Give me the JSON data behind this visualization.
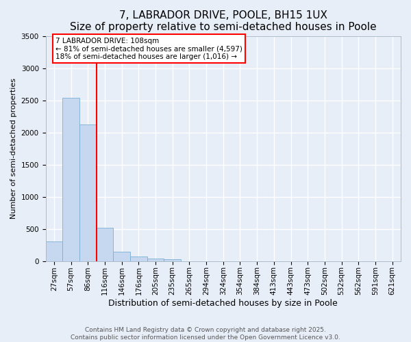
{
  "title": "7, LABRADOR DRIVE, POOLE, BH15 1UX",
  "subtitle": "Size of property relative to semi-detached houses in Poole",
  "xlabel": "Distribution of semi-detached houses by size in Poole",
  "ylabel": "Number of semi-detached properties",
  "bins": [
    "27sqm",
    "57sqm",
    "86sqm",
    "116sqm",
    "146sqm",
    "176sqm",
    "205sqm",
    "235sqm",
    "265sqm",
    "294sqm",
    "324sqm",
    "354sqm",
    "384sqm",
    "413sqm",
    "443sqm",
    "473sqm",
    "502sqm",
    "532sqm",
    "562sqm",
    "591sqm",
    "621sqm"
  ],
  "values": [
    310,
    2540,
    2120,
    520,
    150,
    70,
    40,
    30,
    0,
    0,
    0,
    0,
    0,
    0,
    0,
    0,
    0,
    0,
    0,
    0,
    0
  ],
  "bar_color": "#c5d8f0",
  "bar_edge_color": "#7aafd4",
  "vline_color": "red",
  "vline_x_index": 2.5,
  "annotation_text": "7 LABRADOR DRIVE: 108sqm\n← 81% of semi-detached houses are smaller (4,597)\n18% of semi-detached houses are larger (1,016) →",
  "annotation_box_color": "white",
  "annotation_box_edge_color": "red",
  "ylim": [
    0,
    3500
  ],
  "yticks": [
    0,
    500,
    1000,
    1500,
    2000,
    2500,
    3000,
    3500
  ],
  "bg_color": "#e8eef8",
  "plot_bg_color": "#e8eef8",
  "grid_color": "white",
  "footer_line1": "Contains HM Land Registry data © Crown copyright and database right 2025.",
  "footer_line2": "Contains public sector information licensed under the Open Government Licence v3.0.",
  "title_fontsize": 11,
  "subtitle_fontsize": 9.5,
  "xlabel_fontsize": 9,
  "ylabel_fontsize": 8,
  "tick_fontsize": 7.5,
  "annotation_fontsize": 7.5,
  "footer_fontsize": 6.5
}
